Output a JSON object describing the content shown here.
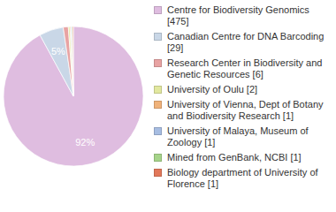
{
  "chart_data": {
    "type": "pie",
    "categories": [
      "Centre for Biodiversity Genomics [475]",
      "Canadian Centre for DNA Barcoding [29]",
      "Research Center in Biodiversity and Genetic Resources [6]",
      "University of Oulu [2]",
      "University of Vienna, Dept of Botany and Biodiversity Research [1]",
      "University of Malaya, Museum of Zoology [1]",
      "Mined from GenBank, NCBI [1]",
      "Biology department of University of Florence [1]"
    ],
    "values": [
      475,
      29,
      6,
      2,
      1,
      1,
      1,
      1
    ],
    "colors": [
      "#dfbde0",
      "#c9d7e7",
      "#e8a3a3",
      "#e2e89f",
      "#f0b27a",
      "#a7bde2",
      "#a6d48a",
      "#e2785a"
    ],
    "annotations": [
      {
        "text": "92%",
        "index": 0
      },
      {
        "text": "5%",
        "index": 1
      }
    ],
    "legend": "right"
  }
}
